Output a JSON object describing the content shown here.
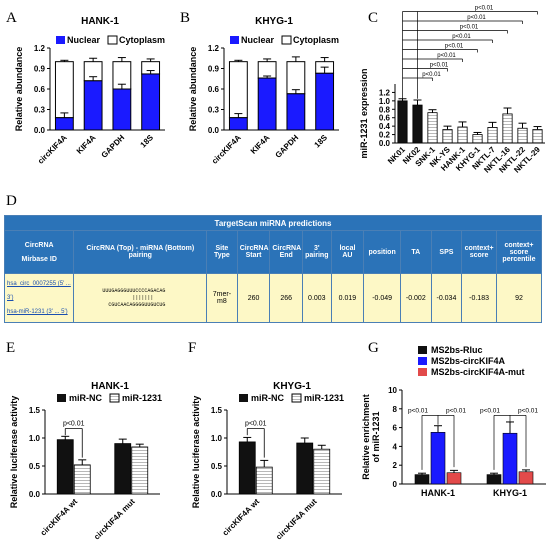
{
  "panels": {
    "A": {
      "letter": "A",
      "title": "HANK-1",
      "ylabel": "Relative abundance",
      "legend": [
        "Nuclear",
        "Cytoplasm"
      ],
      "chart_data": {
        "type": "bar",
        "stacked": true,
        "categories": [
          "circKIF4A",
          "KIF4A",
          "GAPDH",
          "18S"
        ],
        "series": [
          {
            "name": "Nuclear",
            "values": [
              0.18,
              0.72,
              0.6,
              0.82
            ],
            "errors": [
              0.07,
              0.06,
              0.07,
              0.05
            ]
          },
          {
            "name": "Cytoplasm",
            "values": [
              0.82,
              0.28,
              0.4,
              0.18
            ],
            "errors": [
              0.02,
              0.05,
              0.06,
              0.04
            ]
          }
        ],
        "ylim": [
          0,
          1.2
        ],
        "yticks": [
          "0.0",
          "0.3",
          "0.6",
          "0.9",
          "1.2"
        ]
      }
    },
    "B": {
      "letter": "B",
      "title": "KHYG-1",
      "ylabel": "Relative abundance",
      "legend": [
        "Nuclear",
        "Cytoplasm"
      ],
      "chart_data": {
        "type": "bar",
        "stacked": true,
        "categories": [
          "circKIF4A",
          "KIF4A",
          "GAPDH",
          "18S"
        ],
        "series": [
          {
            "name": "Nuclear",
            "values": [
              0.18,
              0.76,
              0.53,
              0.83
            ],
            "errors": [
              0.06,
              0.03,
              0.06,
              0.09
            ]
          },
          {
            "name": "Cytoplasm",
            "values": [
              0.82,
              0.24,
              0.47,
              0.17
            ],
            "errors": [
              0.02,
              0.04,
              0.07,
              0.06
            ]
          }
        ],
        "ylim": [
          0,
          1.2
        ],
        "yticks": [
          "0.0",
          "0.3",
          "0.6",
          "0.9",
          "1.2"
        ]
      }
    },
    "C": {
      "letter": "C",
      "ylabel": "miR-1231 expression",
      "chart_data": {
        "type": "bar",
        "categories": [
          "NK01",
          "NK02",
          "SNK-1",
          "NK-YS",
          "HANK-1",
          "KHYG-1",
          "NKTL-7",
          "NKTL-16",
          "NKTL-22",
          "NKTL-29"
        ],
        "values": [
          1.0,
          0.9,
          0.72,
          0.32,
          0.38,
          0.2,
          0.37,
          0.69,
          0.35,
          0.32
        ],
        "errors": [
          0.05,
          0.12,
          0.07,
          0.08,
          0.12,
          0.05,
          0.12,
          0.14,
          0.12,
          0.07
        ],
        "ylim": [
          0,
          1.4
        ],
        "yticks": [
          "0.0",
          "0.2",
          "0.4",
          "0.6",
          "0.8",
          "1.0",
          "1.2"
        ],
        "annotations": [
          "p<0.01",
          "p<0.01",
          "p<0.01",
          "p<0.01",
          "p<0.01",
          "p<0.01",
          "p<0.01",
          "p<0.01"
        ]
      }
    },
    "D": {
      "letter": "D",
      "table_title": "TargetScan miRNA predictions",
      "headers": [
        "CircRNA\n\nMirbase ID",
        "CircRNA (Top) - miRNA (Bottom) pairing",
        "Site Type",
        "CircRNA Start",
        "CircRNA End",
        "3' pairing",
        "local AU",
        "position",
        "TA",
        "SPS",
        "context+ score",
        "context+ score percentile"
      ],
      "row": {
        "circ": "hsa_circ_0007255 (5' ... 3')",
        "mir": "hsa-miR-1231 (3' ... 5')",
        "pair_top": "UUUGAGGGUUUCCCCAGACAG",
        "pair_mid": "|||||||",
        "pair_bot": "CGUCAACAGGGGUUGUCUG",
        "cells": [
          "7mer-m8",
          "260",
          "266",
          "0.003",
          "0.019",
          "-0.049",
          "-0.002",
          "-0.034",
          "-0.183",
          "92"
        ]
      }
    },
    "E": {
      "letter": "E",
      "title": "HANK-1",
      "ylabel": "Relative luciferase activity",
      "legend": [
        "miR-NC",
        "miR-1231"
      ],
      "chart_data": {
        "type": "bar",
        "categories": [
          "circKIF4A wt",
          "circKIF4A mut"
        ],
        "series": [
          {
            "name": "miR-NC",
            "values": [
              0.97,
              0.9
            ],
            "errors": [
              0.06,
              0.08
            ]
          },
          {
            "name": "miR-1231",
            "values": [
              0.52,
              0.84
            ],
            "errors": [
              0.09,
              0.05
            ]
          }
        ],
        "ylim": [
          0,
          1.5
        ],
        "yticks": [
          "0.0",
          "0.5",
          "1.0",
          "1.5"
        ],
        "annotation": "p<0.01"
      }
    },
    "F": {
      "letter": "F",
      "title": "KHYG-1",
      "ylabel": "Relative luciferase activity",
      "legend": [
        "miR-NC",
        "miR-1231"
      ],
      "chart_data": {
        "type": "bar",
        "categories": [
          "circKIF4A wt",
          "circKIF4A mut"
        ],
        "series": [
          {
            "name": "miR-NC",
            "values": [
              0.93,
              0.91
            ],
            "errors": [
              0.08,
              0.09
            ]
          },
          {
            "name": "miR-1231",
            "values": [
              0.48,
              0.8
            ],
            "errors": [
              0.12,
              0.07
            ]
          }
        ],
        "ylim": [
          0,
          1.5
        ],
        "yticks": [
          "0.0",
          "0.5",
          "1.0",
          "1.5"
        ],
        "annotation": "p<0.01"
      }
    },
    "G": {
      "letter": "G",
      "ylabel": "Relative enrichment\nof miR-1231",
      "legend": [
        "MS2bs-Rluc",
        "MS2bs-circKIF4A",
        "MS2bs-circKIF4A-mut"
      ],
      "chart_data": {
        "type": "bar",
        "categories": [
          "HANK-1",
          "KHYG-1"
        ],
        "series": [
          {
            "name": "MS2bs-Rluc",
            "values": [
              1.0,
              1.0
            ],
            "errors": [
              0.15,
              0.15
            ]
          },
          {
            "name": "MS2bs-circKIF4A",
            "values": [
              5.5,
              5.4
            ],
            "errors": [
              0.7,
              1.2
            ]
          },
          {
            "name": "MS2bs-circKIF4A-mut",
            "values": [
              1.2,
              1.3
            ],
            "errors": [
              0.25,
              0.2
            ]
          }
        ],
        "ylim": [
          0,
          10
        ],
        "yticks": [
          "0",
          "2",
          "4",
          "6",
          "8",
          "10"
        ],
        "annotations": [
          "p<0.01",
          "p<0.01",
          "p<0.01",
          "p<0.01"
        ]
      }
    }
  },
  "colors": {
    "blue": "#1a1aff",
    "black": "#111111",
    "red": "#e24a4a",
    "table_header": "#2b73b8",
    "table_row": "#fdf8c6"
  }
}
